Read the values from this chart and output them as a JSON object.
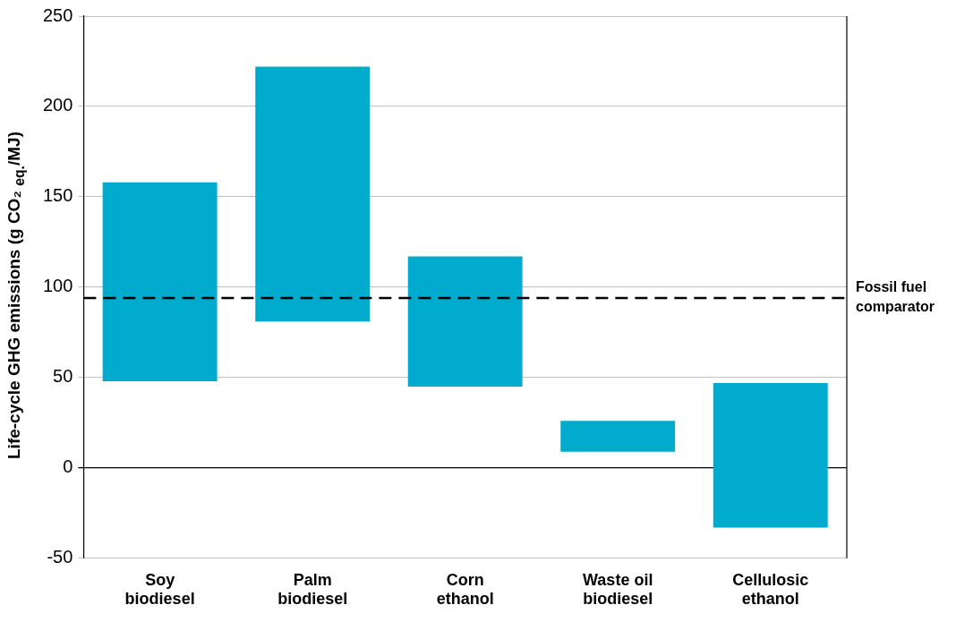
{
  "chart_data": {
    "type": "bar",
    "ylabel": "Life-cycle GHG emissions (g CO₂ $_{eq.}$/MJ)",
    "categories": [
      "Soy biodiesel",
      "Palm biodiesel",
      "Corn ethanol",
      "Waste oil biodiesel",
      "Cellulosic ethanol"
    ],
    "values": [
      110,
      141,
      72,
      17,
      80
    ],
    "base": [
      48,
      81,
      45,
      9,
      -33
    ],
    "color": "#00abcd",
    "ylim": [
      -50,
      250
    ],
    "yticks": [
      -50,
      0,
      50,
      100,
      150,
      200,
      250
    ],
    "grid": "y",
    "ref_lines": [
      {
        "axis": "y",
        "value": 94,
        "label": "Fossil fuel comparator",
        "color": "#000000",
        "line_style": "dashed"
      }
    ]
  }
}
